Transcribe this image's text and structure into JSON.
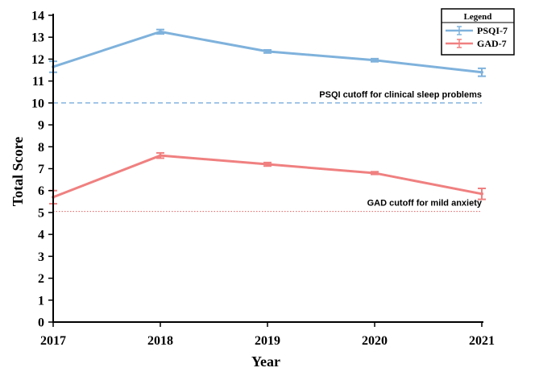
{
  "chart_data": {
    "type": "line",
    "title": "",
    "xlabel": "Year",
    "ylabel": "Total Score",
    "categories": [
      "2017",
      "2018",
      "2019",
      "2020",
      "2021"
    ],
    "ylim": [
      0,
      14
    ],
    "yticks": [
      0,
      1,
      2,
      3,
      4,
      5,
      6,
      7,
      8,
      9,
      10,
      11,
      12,
      13,
      14
    ],
    "legend_title": "Legend",
    "legend_position": "top-right",
    "series": [
      {
        "name": "PSQI-7",
        "color": "#7fb2dc",
        "values": [
          11.65,
          13.25,
          12.35,
          11.95,
          11.4
        ],
        "errors": [
          0.25,
          0.1,
          0.07,
          0.07,
          0.18
        ]
      },
      {
        "name": "GAD-7",
        "color": "#f08080",
        "values": [
          5.7,
          7.6,
          7.2,
          6.8,
          5.85
        ],
        "errors": [
          0.3,
          0.12,
          0.08,
          0.06,
          0.25
        ]
      }
    ],
    "reference_lines": [
      {
        "name": "psqi-cutoff",
        "value": 10,
        "label": "PSQI cutoff for clinical sleep problems",
        "color": "#4a8fd0",
        "style": "dashed"
      },
      {
        "name": "gad-cutoff",
        "value": 5.05,
        "label": "GAD cutoff for mild anxiety",
        "color": "#e06060",
        "style": "dotted"
      }
    ]
  }
}
